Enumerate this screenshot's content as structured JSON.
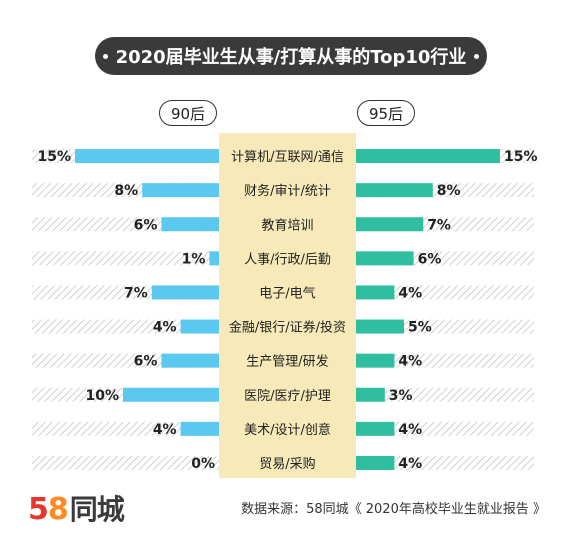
{
  "title": "2020届毕业生从事/打算从事的Top10行业",
  "group_left": "90后",
  "group_right": "95后",
  "colors": {
    "left": "#5ac8ef",
    "right": "#2fbfa0",
    "center": "#f7e9b8",
    "title_bg": "#3a3a3a"
  },
  "chart_data": {
    "type": "bar",
    "categories": [
      "计算机/互联网/通信",
      "财务/审计/统计",
      "教育培训",
      "人事/行政/后勤",
      "电子/电气",
      "金融/银行/证券/投资",
      "生产管理/研发",
      "医院/医疗/护理",
      "美术/设计/创意",
      "贸易/采购"
    ],
    "series": [
      {
        "name": "90后",
        "values": [
          15,
          8,
          6,
          1,
          7,
          4,
          6,
          10,
          4,
          0
        ],
        "labels": [
          "15%",
          "8%",
          "6%",
          "1%",
          "7%",
          "4%",
          "6%",
          "10%",
          "4%",
          "0%"
        ]
      },
      {
        "name": "95后",
        "values": [
          15,
          8,
          7,
          6,
          4,
          5,
          4,
          3,
          4,
          4
        ],
        "labels": [
          "15%",
          "8%",
          "7%",
          "6%",
          "4%",
          "5%",
          "4%",
          "3%",
          "4%",
          "4%"
        ]
      }
    ],
    "xlim": [
      0,
      15
    ]
  },
  "footer": {
    "logo_digit_5": "5",
    "logo_digit_8": "8",
    "logo_text": "同城",
    "source": "数据来源：58同城《 2020年高校毕业生就业报告 》"
  }
}
